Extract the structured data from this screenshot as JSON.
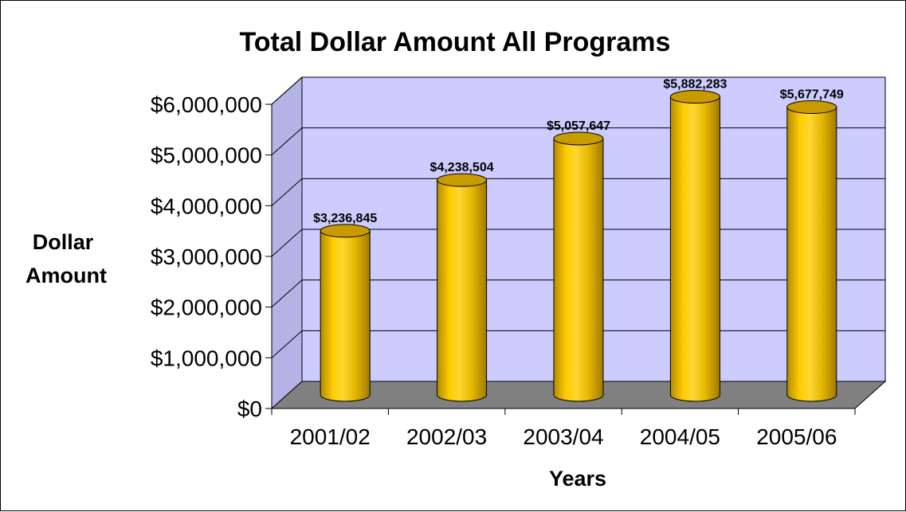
{
  "chart_data": {
    "type": "bar",
    "title": "Total Dollar Amount All Programs",
    "xlabel": "Years",
    "ylabel_line1": "Dollar",
    "ylabel_line2": "Amount",
    "categories": [
      "2001/02",
      "2002/03",
      "2003/04",
      "2004/05",
      "2005/06"
    ],
    "values": [
      3236845,
      4238504,
      5057647,
      5882283,
      5677749
    ],
    "data_labels": [
      "$3,236,845",
      "$4,238,504",
      "$5,057,647",
      "$5,882,283",
      "$5,677,749"
    ],
    "yticks": [
      "$0",
      "$1,000,000",
      "$2,000,000",
      "$3,000,000",
      "$4,000,000",
      "$5,000,000",
      "$6,000,000"
    ],
    "ylim": [
      0,
      6000000
    ],
    "grid": true,
    "legend": "none",
    "colors": {
      "bar": "#FFCC00",
      "bar_dark": "#C79A00",
      "wall": "#CCCCFF",
      "floor": "#808080"
    }
  }
}
